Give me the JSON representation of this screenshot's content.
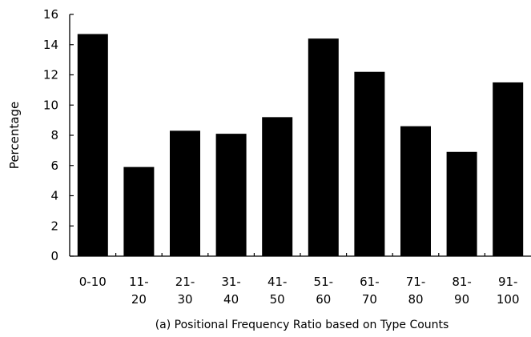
{
  "chart_data": {
    "type": "bar",
    "categories": [
      [
        "0-10"
      ],
      [
        "11-",
        "20"
      ],
      [
        "21-",
        "30"
      ],
      [
        "31-",
        "40"
      ],
      [
        "41-",
        "50"
      ],
      [
        "51-",
        "60"
      ],
      [
        "61-",
        "70"
      ],
      [
        "71-",
        "80"
      ],
      [
        "81-",
        "90"
      ],
      [
        "91-",
        "100"
      ]
    ],
    "values": [
      14.7,
      5.9,
      8.3,
      8.1,
      9.2,
      14.4,
      12.2,
      8.6,
      6.9,
      11.5
    ],
    "ylabel": "Percentage",
    "xlabel": "",
    "caption": "(a) Positional Frequency Ratio based on Type Counts",
    "ylim": [
      0,
      16
    ],
    "yticks": [
      "0",
      "2",
      "4",
      "6",
      "8",
      "10",
      "12",
      "14",
      "16"
    ],
    "grid": false,
    "bar_color": "#000000"
  }
}
